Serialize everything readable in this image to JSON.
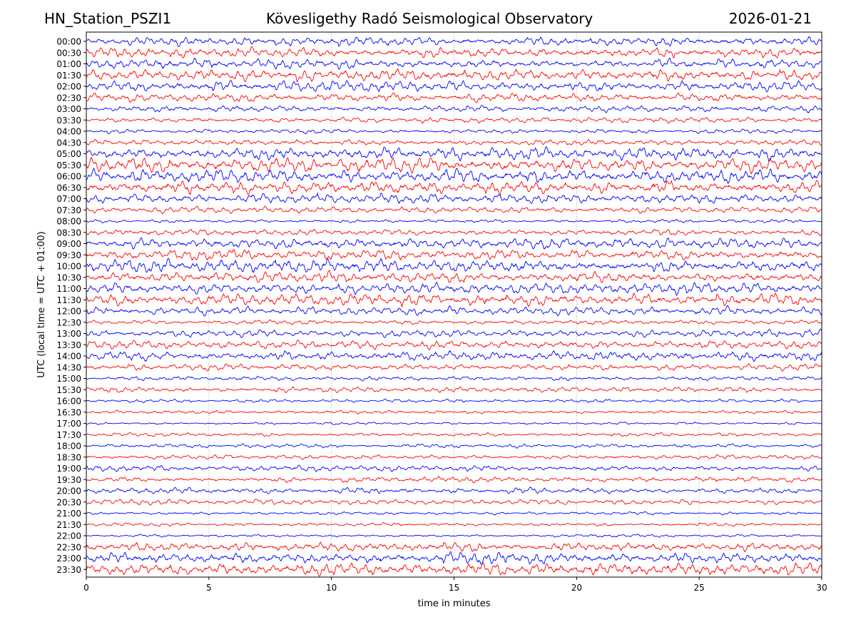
{
  "header": {
    "station": "HN_Station_PSZI1",
    "observatory": "Kövesligethy Radó Seismological Observatory",
    "date": "2026-01-21"
  },
  "chart_data": {
    "type": "line",
    "title": "Kövesligethy Radó Seismological Observatory",
    "xlabel": "time in minutes",
    "ylabel": "UTC (local time = UTC + 01:00)",
    "xlim": [
      0,
      30
    ],
    "x_ticks": [
      "0",
      "5",
      "10",
      "15",
      "20",
      "25",
      "30"
    ],
    "y_tick_labels": [
      "00:00",
      "00:30",
      "01:00",
      "01:30",
      "02:00",
      "02:30",
      "03:00",
      "03:30",
      "04:00",
      "04:30",
      "05:00",
      "05:30",
      "06:00",
      "06:30",
      "07:00",
      "07:30",
      "08:00",
      "08:30",
      "09:00",
      "09:30",
      "10:00",
      "10:30",
      "11:00",
      "11:30",
      "12:00",
      "12:30",
      "13:00",
      "13:30",
      "14:00",
      "14:30",
      "15:00",
      "15:30",
      "16:00",
      "16:30",
      "17:00",
      "17:30",
      "18:00",
      "18:30",
      "19:00",
      "19:30",
      "20:00",
      "20:30",
      "21:00",
      "21:30",
      "22:00",
      "22:30",
      "23:00",
      "23:30"
    ],
    "trace_colors": [
      "#0000ff",
      "#ff0000"
    ],
    "trace_amplitude": [
      0.9,
      0.9,
      0.9,
      1.1,
      1.0,
      0.8,
      0.6,
      0.5,
      0.4,
      0.5,
      1.2,
      1.3,
      1.3,
      1.2,
      0.9,
      0.6,
      0.3,
      0.6,
      1.0,
      1.0,
      1.2,
      1.0,
      1.0,
      1.1,
      0.8,
      0.4,
      0.7,
      0.8,
      0.9,
      0.6,
      0.4,
      0.5,
      0.3,
      0.3,
      0.25,
      0.35,
      0.35,
      0.45,
      0.55,
      0.5,
      0.6,
      0.5,
      0.3,
      0.3,
      0.25,
      0.9,
      1.1,
      1.2
    ],
    "grid": "vertical dotted at x ticks",
    "legend": "none"
  }
}
